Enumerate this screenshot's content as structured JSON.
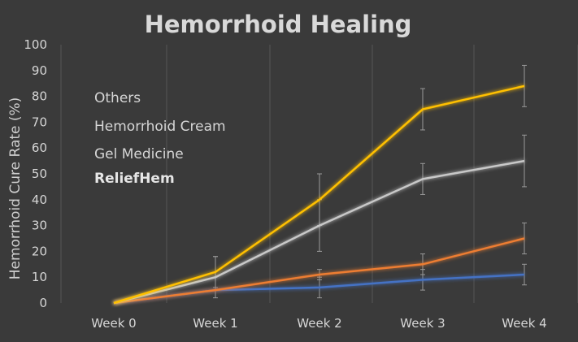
{
  "chart_data": {
    "type": "line",
    "title": "Hemorrhoid Healing",
    "xlabel": "",
    "ylabel": "Hemorrhoid Cure Rate  (%)",
    "categories": [
      "Week 0",
      "Week 1",
      "Week 2",
      "Week 3",
      "Week 4"
    ],
    "ylim": [
      0,
      100
    ],
    "yticks": [
      0,
      10,
      20,
      30,
      40,
      50,
      60,
      70,
      80,
      90,
      100
    ],
    "grid": "vertical",
    "legend_position": "top-left",
    "series": [
      {
        "name": "Others",
        "color": "#4472c4",
        "bold": false,
        "values": [
          0,
          5,
          6,
          9,
          11
        ],
        "error": [
          0,
          0,
          4,
          4,
          4
        ]
      },
      {
        "name": "Hemorrhoid Cream",
        "color": "#ed7d31",
        "bold": false,
        "values": [
          0,
          5,
          11,
          15,
          25
        ],
        "error": [
          0,
          0,
          2,
          4,
          6
        ]
      },
      {
        "name": "Gel Medicine",
        "color": "#c8c8c8",
        "bold": false,
        "values": [
          0,
          10,
          30,
          48,
          55
        ],
        "error": [
          0,
          8,
          10,
          6,
          10
        ]
      },
      {
        "name": "ReliefHem",
        "color": "#ffc000",
        "bold": true,
        "values": [
          0,
          12,
          40,
          75,
          84
        ],
        "error": [
          0,
          6,
          10,
          8,
          8
        ]
      }
    ]
  }
}
